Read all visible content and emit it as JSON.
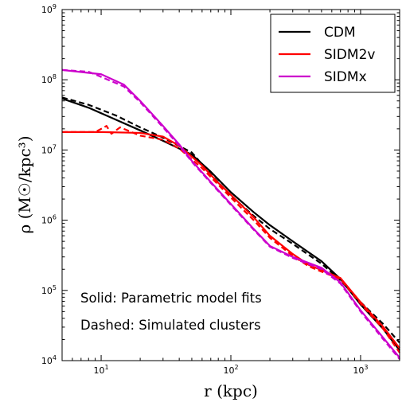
{
  "chart_data": {
    "type": "line",
    "xlabel": "r (kpc)",
    "ylabel": "ρ (M☉/kpc³)",
    "x_scale": "log",
    "y_scale": "log",
    "xlim": [
      5,
      2000
    ],
    "ylim": [
      10000,
      1000000000
    ],
    "x_tick_labels": [
      {
        "base": "10",
        "exp": "1",
        "value": 10
      },
      {
        "base": "10",
        "exp": "2",
        "value": 100
      },
      {
        "base": "10",
        "exp": "3",
        "value": 1000
      }
    ],
    "y_tick_labels": [
      {
        "base": "10",
        "exp": "4",
        "value": 10000
      },
      {
        "base": "10",
        "exp": "5",
        "value": 100000
      },
      {
        "base": "10",
        "exp": "6",
        "value": 1000000
      },
      {
        "base": "10",
        "exp": "7",
        "value": 10000000
      },
      {
        "base": "10",
        "exp": "8",
        "value": 100000000
      },
      {
        "base": "10",
        "exp": "9",
        "value": 1000000000
      }
    ],
    "legend": {
      "placement": "top-right",
      "entries": [
        {
          "label": "CDM",
          "color": "#000000"
        },
        {
          "label": "SIDM2v",
          "color": "#ff0000"
        },
        {
          "label": "SIDMx",
          "color": "#cc00cc"
        }
      ]
    },
    "annotations": [
      "Solid: Parametric model fits",
      "Dashed: Simulated clusters"
    ],
    "series": [
      {
        "name": "CDM",
        "style": "solid",
        "color": "#000000",
        "points": [
          [
            5,
            54000000
          ],
          [
            8,
            40000000
          ],
          [
            13,
            27000000
          ],
          [
            20,
            19000000
          ],
          [
            30,
            13500000
          ],
          [
            50,
            8600000
          ],
          [
            70,
            4900000
          ],
          [
            100,
            2500000
          ],
          [
            150,
            1300000
          ],
          [
            200,
            850000
          ],
          [
            300,
            500000
          ],
          [
            500,
            260000
          ],
          [
            700,
            145000
          ],
          [
            1000,
            63000
          ],
          [
            1500,
            28000
          ],
          [
            2000,
            14000
          ]
        ]
      },
      {
        "name": "CDM",
        "style": "dashed",
        "color": "#000000",
        "points": [
          [
            5,
            56000000
          ],
          [
            8,
            44000000
          ],
          [
            13,
            31000000
          ],
          [
            20,
            21000000
          ],
          [
            30,
            15000000
          ],
          [
            50,
            9200000
          ],
          [
            70,
            4500000
          ],
          [
            100,
            2250000
          ],
          [
            150,
            1150000
          ],
          [
            200,
            750000
          ],
          [
            300,
            460000
          ],
          [
            500,
            240000
          ],
          [
            700,
            140000
          ],
          [
            1000,
            68000
          ],
          [
            1500,
            33000
          ],
          [
            2000,
            18000
          ]
        ]
      },
      {
        "name": "SIDM2v",
        "style": "solid",
        "color": "#ff0000",
        "points": [
          [
            5,
            18000000
          ],
          [
            10,
            18000000
          ],
          [
            20,
            17500000
          ],
          [
            30,
            15500000
          ],
          [
            40,
            11500000
          ],
          [
            60,
            6000000
          ],
          [
            80,
            3400000
          ],
          [
            100,
            2300000
          ],
          [
            150,
            1100000
          ],
          [
            200,
            600000
          ],
          [
            300,
            330000
          ],
          [
            400,
            230000
          ],
          [
            500,
            195000
          ],
          [
            700,
            150000
          ],
          [
            1000,
            68000
          ],
          [
            1500,
            30000
          ],
          [
            2000,
            15000
          ]
        ]
      },
      {
        "name": "SIDM2v",
        "style": "dashed",
        "color": "#ff0000",
        "points": [
          [
            5,
            18000000
          ],
          [
            9,
            18000000
          ],
          [
            11,
            22000000
          ],
          [
            12,
            17000000
          ],
          [
            14,
            21000000
          ],
          [
            20,
            16000000
          ],
          [
            30,
            14000000
          ],
          [
            40,
            10500000
          ],
          [
            60,
            5500000
          ],
          [
            80,
            3200000
          ],
          [
            100,
            2100000
          ],
          [
            150,
            1000000
          ],
          [
            200,
            560000
          ],
          [
            300,
            310000
          ],
          [
            400,
            220000
          ],
          [
            500,
            185000
          ],
          [
            700,
            145000
          ],
          [
            1000,
            65000
          ],
          [
            1500,
            28000
          ],
          [
            2000,
            13000
          ]
        ]
      },
      {
        "name": "SIDMx",
        "style": "solid",
        "color": "#cc00cc",
        "points": [
          [
            5,
            138000000
          ],
          [
            10,
            120000000
          ],
          [
            15,
            85000000
          ],
          [
            20,
            50000000
          ],
          [
            30,
            22000000
          ],
          [
            40,
            12000000
          ],
          [
            50,
            7000000
          ],
          [
            70,
            3500000
          ],
          [
            100,
            1700000
          ],
          [
            150,
            750000
          ],
          [
            200,
            430000
          ],
          [
            300,
            300000
          ],
          [
            500,
            210000
          ],
          [
            700,
            130000
          ],
          [
            1000,
            52000
          ],
          [
            1500,
            21000
          ],
          [
            2000,
            11000
          ]
        ]
      },
      {
        "name": "SIDMx",
        "style": "dashed",
        "color": "#cc00cc",
        "points": [
          [
            5,
            138000000
          ],
          [
            8,
            130000000
          ],
          [
            10,
            110000000
          ],
          [
            15,
            80000000
          ],
          [
            20,
            48000000
          ],
          [
            30,
            21000000
          ],
          [
            40,
            11500000
          ],
          [
            50,
            6800000
          ],
          [
            70,
            3400000
          ],
          [
            100,
            1650000
          ],
          [
            150,
            730000
          ],
          [
            200,
            420000
          ],
          [
            300,
            290000
          ],
          [
            500,
            200000
          ],
          [
            700,
            125000
          ],
          [
            1000,
            50000
          ],
          [
            1500,
            20000
          ],
          [
            2000,
            10500
          ]
        ]
      }
    ]
  }
}
